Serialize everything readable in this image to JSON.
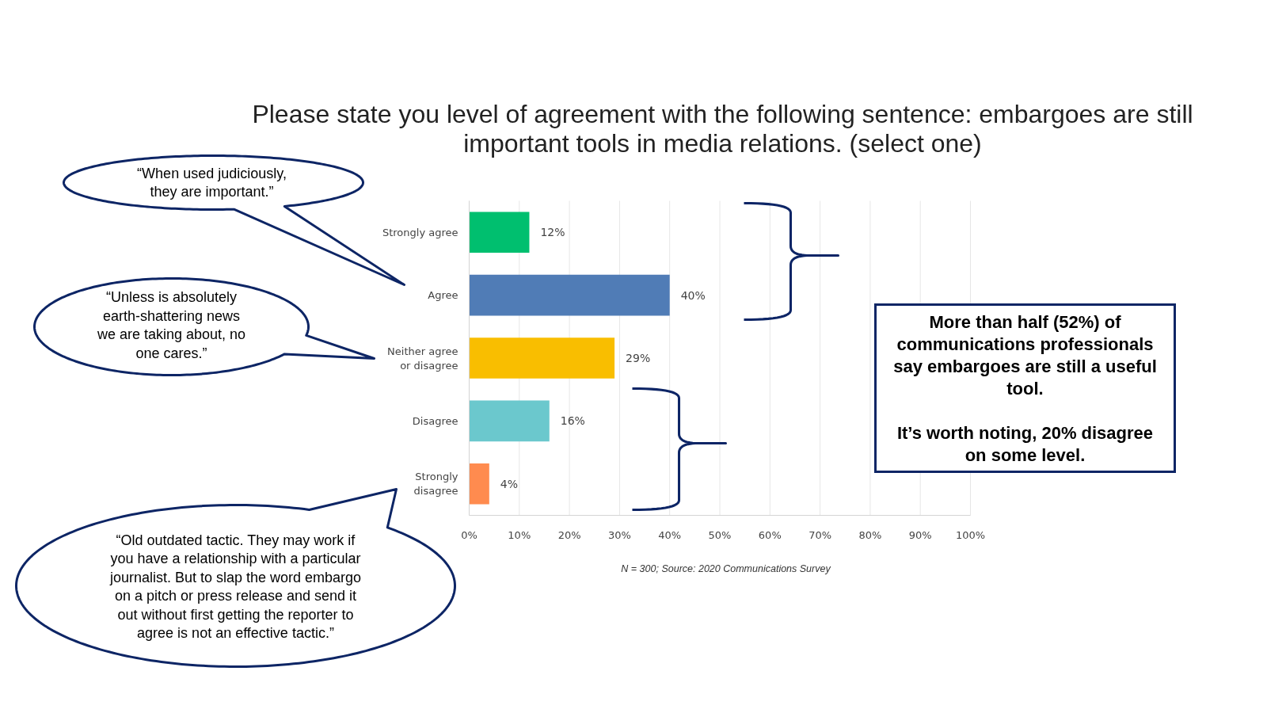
{
  "chart_data": {
    "type": "bar",
    "orientation": "horizontal",
    "title": "Please state you level of agreement with the following sentence: embargoes are still important tools in media relations. (select one)",
    "categories": [
      "Strongly agree",
      "Agree",
      "Neither agree or disagree",
      "Disagree",
      "Strongly disagree"
    ],
    "values": [
      12,
      40,
      29,
      16,
      4
    ],
    "colors": [
      "#00bf6f",
      "#507cb6",
      "#f9be00",
      "#6bc8cd",
      "#ff8b4f"
    ],
    "value_labels": [
      "12%",
      "40%",
      "29%",
      "16%",
      "4%"
    ],
    "xlim": [
      0,
      100
    ],
    "xticks": [
      {
        "value": 0,
        "label": "0%"
      },
      {
        "value": 10,
        "label": "10%"
      },
      {
        "value": 20,
        "label": "20%"
      },
      {
        "value": 30,
        "label": "30%"
      },
      {
        "value": 40,
        "label": "40%"
      },
      {
        "value": 50,
        "label": "50%"
      },
      {
        "value": 60,
        "label": "60%"
      },
      {
        "value": 70,
        "label": "70%"
      },
      {
        "value": 80,
        "label": "80%"
      },
      {
        "value": 90,
        "label": "90%"
      },
      {
        "value": 100,
        "label": "100%"
      }
    ],
    "grid": "x",
    "annotations": [
      "“When used judiciously,\nthey are important.”",
      "“Unless is absolutely\nearth-shattering news\nwe are taking about, no\none cares.”",
      "“Old outdated tactic. They may work if\nyou have a relationship with a particular\njournalist. But to slap the word embargo\non a pitch or press release and send it\nout without first getting the reporter to\nagree is not an effective tactic.”",
      "More than half (52%) of\ncommunications professionals\nsay embargoes are still a useful\ntool.\n\nIt’s worth noting, 20% disagree\non some level.",
      "N = 300; Source: 2020 Communications Survey"
    ]
  }
}
